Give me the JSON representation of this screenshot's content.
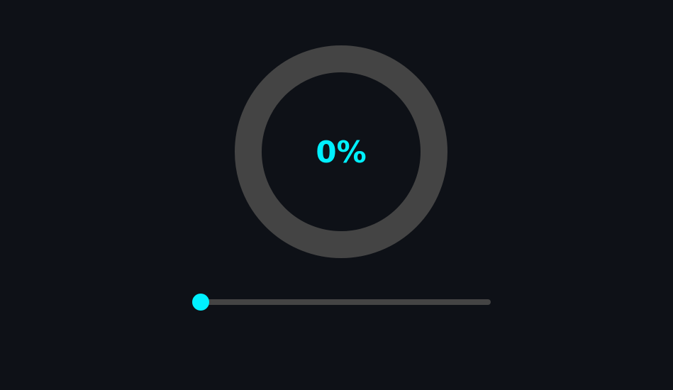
{
  "progress": {
    "value": 0,
    "label": "0%"
  },
  "slider": {
    "value": 0,
    "min": 0,
    "max": 100
  },
  "colors": {
    "background": "#0e1117",
    "track": "#444444",
    "accent": "#00f0ff"
  }
}
